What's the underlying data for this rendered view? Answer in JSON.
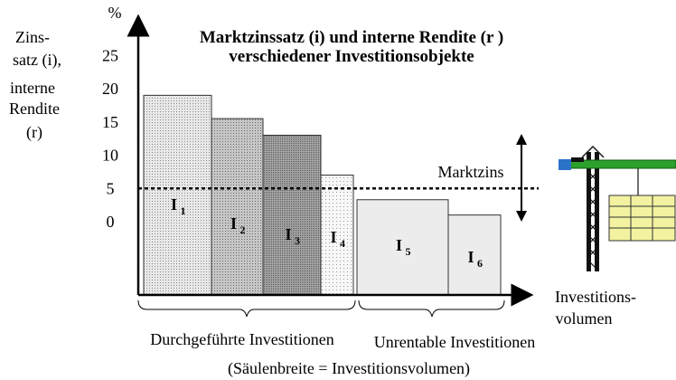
{
  "chart_data": {
    "type": "bar",
    "title": "Marktzinssatz (i) und interne Rendite (r )",
    "subtitle": "verschiedener Investitionsobjekte",
    "ylabel_lines": [
      "Zins-",
      "satz (i),",
      "interne",
      "Rendite",
      "(r)"
    ],
    "yunit": "%",
    "xlabel_lines": [
      "Investitions-",
      "volumen"
    ],
    "yticks": [
      0,
      5,
      10,
      15,
      20,
      25
    ],
    "ylim": [
      -10,
      30
    ],
    "reference_line": {
      "label": "Marktzins",
      "value": 5
    },
    "bars": [
      {
        "label": "I",
        "sub": "1",
        "value": 19,
        "width": 75,
        "group": "done",
        "fill": "#c8c8c8"
      },
      {
        "label": "I",
        "sub": "2",
        "value": 15.5,
        "width": 57,
        "group": "done",
        "fill": "#a8a8a8"
      },
      {
        "label": "I",
        "sub": "3",
        "value": 13,
        "width": 64,
        "group": "done",
        "fill": "#8a8a8a"
      },
      {
        "label": "I",
        "sub": "4",
        "value": 7,
        "width": 36,
        "group": "done",
        "fill": "#eaeaea"
      },
      {
        "label": "I",
        "sub": "5",
        "value": 3.3,
        "width": 101,
        "group": "rejected",
        "fill": "#ececec"
      },
      {
        "label": "I",
        "sub": "6",
        "value": 1,
        "width": 58,
        "group": "rejected",
        "fill": "#ececec"
      }
    ],
    "groups": {
      "done": "Durchgeführte Investitionen",
      "rejected": "Unrentable Investitionen"
    },
    "note": "(Säulenbreite = Investitionsvolumen)"
  }
}
